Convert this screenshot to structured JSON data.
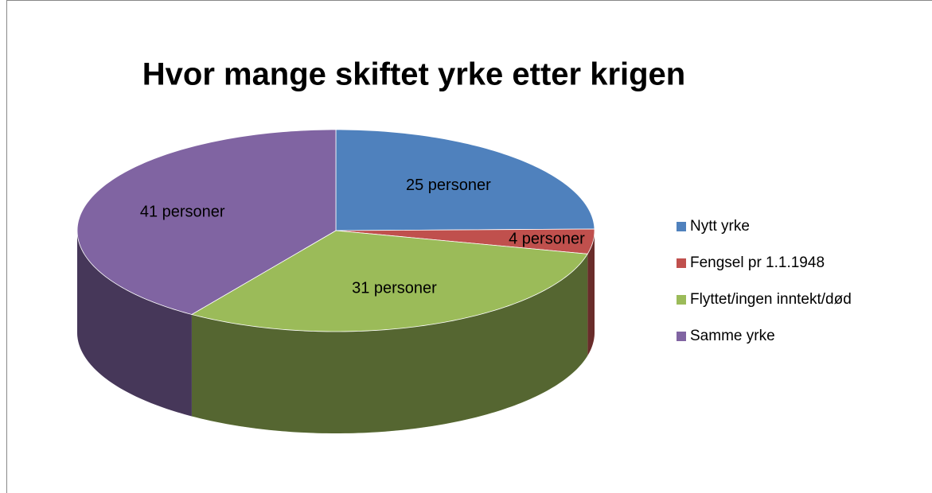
{
  "chart_data": {
    "type": "pie3d",
    "title": "Hvor mange skiftet yrke etter krigen",
    "categories": [
      "Nytt yrke",
      "Fengsel pr 1.1.1948",
      "Flyttet/ingen inntekt/død",
      "Samme yrke"
    ],
    "values": [
      25,
      4,
      31,
      41
    ],
    "value_labels": [
      "25 personer",
      "4 personer",
      "31 personer",
      "41 personer"
    ],
    "colors": [
      "#4f81bd",
      "#c0504d",
      "#9bbb59",
      "#8064a2"
    ],
    "legend": "right"
  }
}
